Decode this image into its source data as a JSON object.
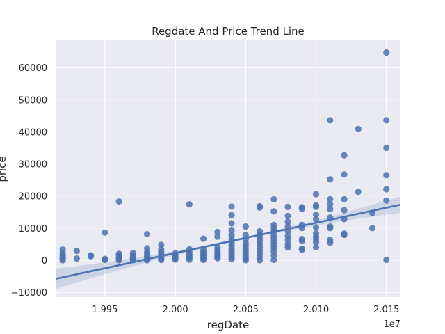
{
  "chart_data": {
    "type": "scatter",
    "title": "Regdate And Price Trend Line",
    "xlabel": "regDate",
    "ylabel": "price",
    "x_offset_text": "1e7",
    "x_ticks": [
      "1.995",
      "2.000",
      "2.005",
      "2.010",
      "2.015"
    ],
    "y_ticks": [
      "−10000",
      "0",
      "10000",
      "20000",
      "30000",
      "40000",
      "50000",
      "60000"
    ],
    "xlim": [
      1.9915,
      2.016
    ],
    "ylim": [
      -11500,
      68500
    ],
    "grid": true,
    "colors": {
      "points": "#4c72b0",
      "line": "#4c72b0",
      "background": "#eaeaf2"
    },
    "trend_line": {
      "x": [
        1.9915,
        2.016
      ],
      "y": [
        -5800,
        17300
      ]
    },
    "points": [
      [
        1.992,
        3300
      ],
      [
        1.992,
        2200
      ],
      [
        1.992,
        1500
      ],
      [
        1.992,
        900
      ],
      [
        1.992,
        500
      ],
      [
        1.992,
        0
      ],
      [
        1.993,
        2900
      ],
      [
        1.993,
        500
      ],
      [
        1.994,
        1500
      ],
      [
        1.994,
        1200
      ],
      [
        1.995,
        8600
      ],
      [
        1.995,
        400
      ],
      [
        1.995,
        100
      ],
      [
        1.996,
        18300
      ],
      [
        1.996,
        2000
      ],
      [
        1.996,
        1500
      ],
      [
        1.996,
        1000
      ],
      [
        1.996,
        500
      ],
      [
        1.996,
        0
      ],
      [
        1.997,
        2200
      ],
      [
        1.997,
        1500
      ],
      [
        1.997,
        1000
      ],
      [
        1.997,
        600
      ],
      [
        1.997,
        300
      ],
      [
        1.997,
        0
      ],
      [
        1.998,
        8100
      ],
      [
        1.998,
        3700
      ],
      [
        1.998,
        2500
      ],
      [
        1.998,
        1800
      ],
      [
        1.998,
        1200
      ],
      [
        1.998,
        700
      ],
      [
        1.998,
        300
      ],
      [
        1.998,
        0
      ],
      [
        1.999,
        4800
      ],
      [
        1.999,
        3300
      ],
      [
        1.999,
        2500
      ],
      [
        1.999,
        1800
      ],
      [
        1.999,
        1000
      ],
      [
        1.999,
        500
      ],
      [
        1.999,
        100
      ],
      [
        2.0,
        2100
      ],
      [
        2.0,
        1500
      ],
      [
        2.0,
        1000
      ],
      [
        2.0,
        600
      ],
      [
        2.0,
        200
      ],
      [
        2.001,
        17400
      ],
      [
        2.001,
        3400
      ],
      [
        2.001,
        2500
      ],
      [
        2.001,
        1800
      ],
      [
        2.001,
        1200
      ],
      [
        2.001,
        700
      ],
      [
        2.001,
        200
      ],
      [
        2.002,
        6700
      ],
      [
        2.002,
        3200
      ],
      [
        2.002,
        2500
      ],
      [
        2.002,
        1800
      ],
      [
        2.002,
        1200
      ],
      [
        2.002,
        600
      ],
      [
        2.002,
        100
      ],
      [
        2.003,
        8800
      ],
      [
        2.003,
        7300
      ],
      [
        2.003,
        4000
      ],
      [
        2.003,
        3200
      ],
      [
        2.003,
        2500
      ],
      [
        2.003,
        1800
      ],
      [
        2.003,
        1200
      ],
      [
        2.003,
        600
      ],
      [
        2.004,
        16700
      ],
      [
        2.004,
        14000
      ],
      [
        2.004,
        11500
      ],
      [
        2.004,
        9400
      ],
      [
        2.004,
        7800
      ],
      [
        2.004,
        6500
      ],
      [
        2.004,
        5500
      ],
      [
        2.004,
        4500
      ],
      [
        2.004,
        3500
      ],
      [
        2.004,
        2700
      ],
      [
        2.004,
        1800
      ],
      [
        2.004,
        1000
      ],
      [
        2.004,
        300
      ],
      [
        2.005,
        10500
      ],
      [
        2.005,
        7800
      ],
      [
        2.005,
        6500
      ],
      [
        2.005,
        5300
      ],
      [
        2.005,
        4500
      ],
      [
        2.005,
        3700
      ],
      [
        2.005,
        2800
      ],
      [
        2.005,
        2000
      ],
      [
        2.005,
        1200
      ],
      [
        2.005,
        500
      ],
      [
        2.005,
        0
      ],
      [
        2.006,
        16800
      ],
      [
        2.006,
        16400
      ],
      [
        2.006,
        9000
      ],
      [
        2.006,
        8000
      ],
      [
        2.006,
        7000
      ],
      [
        2.006,
        6000
      ],
      [
        2.006,
        5000
      ],
      [
        2.006,
        4000
      ],
      [
        2.006,
        3000
      ],
      [
        2.006,
        2000
      ],
      [
        2.006,
        1000
      ],
      [
        2.006,
        0
      ],
      [
        2.007,
        19000
      ],
      [
        2.007,
        15200
      ],
      [
        2.007,
        11000
      ],
      [
        2.007,
        10000
      ],
      [
        2.007,
        8900
      ],
      [
        2.007,
        7800
      ],
      [
        2.007,
        6800
      ],
      [
        2.007,
        5800
      ],
      [
        2.007,
        4800
      ],
      [
        2.007,
        3800
      ],
      [
        2.007,
        2800
      ],
      [
        2.007,
        1500
      ],
      [
        2.007,
        100
      ],
      [
        2.008,
        16600
      ],
      [
        2.008,
        13800
      ],
      [
        2.008,
        12000
      ],
      [
        2.008,
        10500
      ],
      [
        2.008,
        9000
      ],
      [
        2.008,
        7500
      ],
      [
        2.008,
        6300
      ],
      [
        2.008,
        5000
      ],
      [
        2.008,
        4000
      ],
      [
        2.009,
        16500
      ],
      [
        2.009,
        16000
      ],
      [
        2.009,
        11000
      ],
      [
        2.009,
        10000
      ],
      [
        2.009,
        6600
      ],
      [
        2.009,
        6000
      ],
      [
        2.009,
        3600
      ],
      [
        2.009,
        3300
      ],
      [
        2.01,
        20600
      ],
      [
        2.01,
        17100
      ],
      [
        2.01,
        16600
      ],
      [
        2.01,
        14200
      ],
      [
        2.01,
        12800
      ],
      [
        2.01,
        10200
      ],
      [
        2.01,
        8400
      ],
      [
        2.01,
        7400
      ],
      [
        2.01,
        6600
      ],
      [
        2.01,
        5600
      ],
      [
        2.01,
        4000
      ],
      [
        2.011,
        43600
      ],
      [
        2.011,
        25200
      ],
      [
        2.011,
        19000
      ],
      [
        2.011,
        17400
      ],
      [
        2.011,
        15900
      ],
      [
        2.011,
        13300
      ],
      [
        2.011,
        10500
      ],
      [
        2.011,
        10000
      ],
      [
        2.011,
        6300
      ],
      [
        2.011,
        5500
      ],
      [
        2.012,
        32700
      ],
      [
        2.012,
        26700
      ],
      [
        2.012,
        19000
      ],
      [
        2.012,
        15600
      ],
      [
        2.012,
        12800
      ],
      [
        2.012,
        8300
      ],
      [
        2.012,
        7900
      ],
      [
        2.013,
        40900
      ],
      [
        2.013,
        21300
      ],
      [
        2.014,
        14700
      ],
      [
        2.014,
        10000
      ],
      [
        2.015,
        64700
      ],
      [
        2.015,
        43600
      ],
      [
        2.015,
        35000
      ],
      [
        2.015,
        26500
      ],
      [
        2.015,
        22100
      ],
      [
        2.015,
        18600
      ],
      [
        2.015,
        100
      ]
    ]
  }
}
